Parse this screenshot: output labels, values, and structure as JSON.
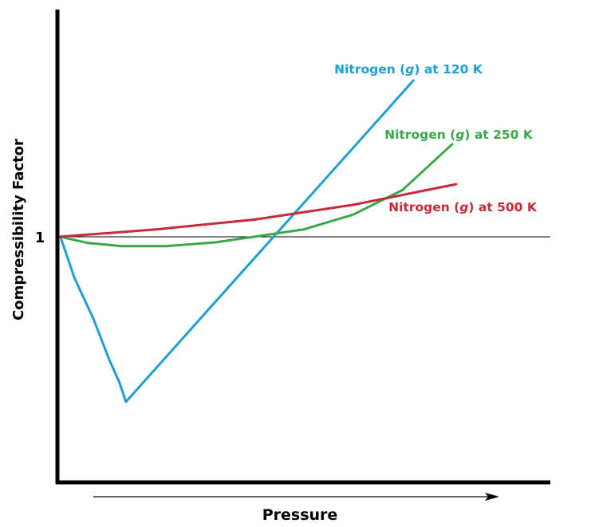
{
  "chart_data": {
    "type": "line",
    "title": "",
    "xlabel": "Pressure",
    "ylabel": "Compressibility Factor",
    "xlim": [
      0,
      10
    ],
    "ylim": [
      0,
      1.925
    ],
    "y_ticks": [
      {
        "value": 1,
        "label": "1"
      }
    ],
    "reference_line": {
      "y": 1
    },
    "grid": false,
    "series": [
      {
        "name": "Nitrogen (g) at 120 K",
        "label_prefix": "Nitrogen (",
        "label_italic": "g",
        "label_suffix": ") at 120 K",
        "color": "#1e9fd2",
        "points": [
          [
            0.06,
            1
          ],
          [
            0.35,
            0.83
          ],
          [
            0.73,
            0.666
          ],
          [
            1.05,
            0.5
          ],
          [
            1.25,
            0.41
          ],
          [
            1.39,
            0.328
          ],
          [
            7.22,
            1.636
          ]
        ]
      },
      {
        "name": "Nitrogen (g) at 250 K",
        "label_prefix": "Nitrogen (",
        "label_italic": "g",
        "label_suffix": ") at 250 K",
        "color": "#38a84a",
        "points": [
          [
            0.06,
            1
          ],
          [
            0.6,
            0.975
          ],
          [
            1.3,
            0.962
          ],
          [
            2.2,
            0.962
          ],
          [
            3.2,
            0.977
          ],
          [
            4.0,
            1.0
          ],
          [
            5.0,
            1.03
          ],
          [
            6.0,
            1.09
          ],
          [
            7.0,
            1.19
          ],
          [
            8.01,
            1.377
          ]
        ]
      },
      {
        "name": "Nitrogen (g) at 500 K",
        "label_prefix": "Nitrogen (",
        "label_italic": "g",
        "label_suffix": ") at 500 K",
        "color": "#c92a3a",
        "points": [
          [
            0.06,
            1
          ],
          [
            2,
            1.03
          ],
          [
            4,
            1.07
          ],
          [
            6,
            1.13
          ],
          [
            8.09,
            1.214
          ]
        ]
      }
    ]
  }
}
